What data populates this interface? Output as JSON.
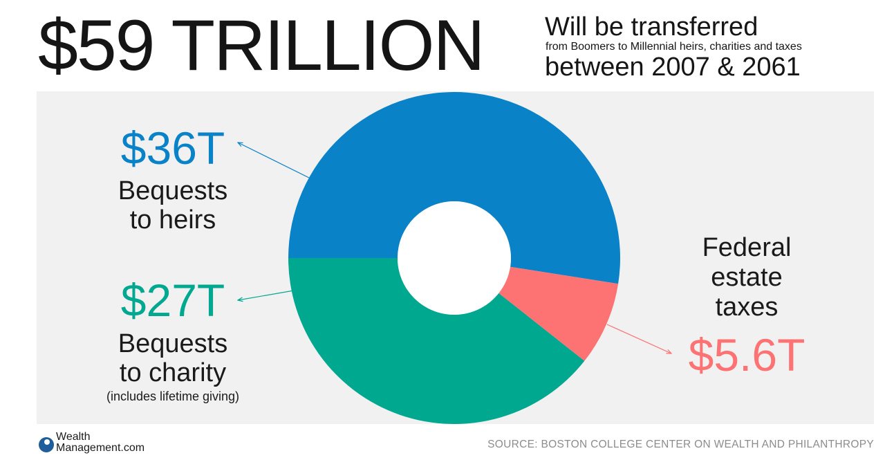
{
  "header": {
    "headline": "$59 TRILLION",
    "line1": "Will be transferred",
    "line2": "from Boomers to Millennial heirs, charities and taxes",
    "line3": "between 2007 & 2061"
  },
  "chart_data": {
    "type": "pie",
    "donut": true,
    "title": "",
    "unit": "trillion USD",
    "slices": [
      {
        "value_label": "$36T",
        "value": 36,
        "name_line1": "Bequests",
        "name_line2": "to heirs",
        "note": "",
        "color": "#0a82c8"
      },
      {
        "value_label": "$5.6T",
        "value": 5.6,
        "name_line1": "Federal",
        "name_line2": "estate",
        "name_line3": "taxes",
        "note": "",
        "color": "#fd7273"
      },
      {
        "value_label": "$27T",
        "value": 27,
        "name_line1": "Bequests",
        "name_line2": "to charity",
        "note": "(includes lifetime giving)",
        "color": "#00a88f"
      }
    ],
    "background": "#f1f1f1"
  },
  "footer": {
    "logo_line1": "Wealth",
    "logo_line2": "Management.com",
    "source": "SOURCE: BOSTON COLLEGE CENTER ON WEALTH AND PHILANTHROPY"
  }
}
